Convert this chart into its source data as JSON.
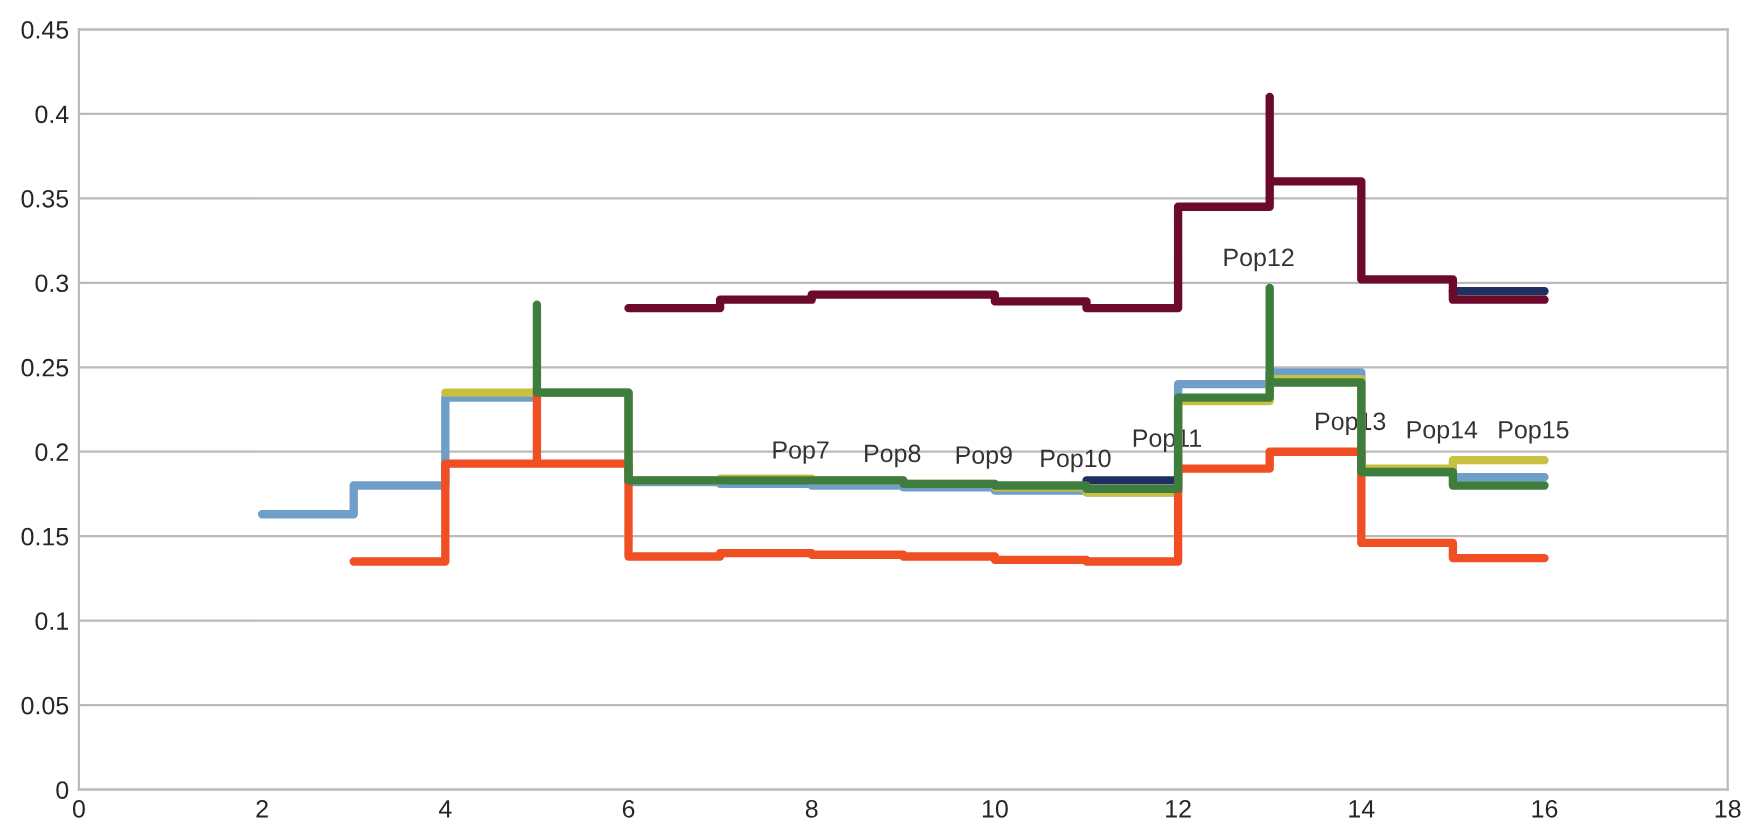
{
  "chart_data": {
    "type": "step",
    "xlim": [
      0,
      18
    ],
    "xticks": [
      0,
      2,
      4,
      6,
      8,
      10,
      12,
      14,
      16,
      18
    ],
    "ylim": [
      0,
      0.45
    ],
    "yticks": [
      0,
      0.05,
      0.1,
      0.15,
      0.2,
      0.25,
      0.3,
      0.35,
      0.4,
      0.45
    ],
    "grid": "y",
    "series": [
      {
        "color": "#6f9fc8",
        "x": [
          2,
          3,
          4,
          5,
          6,
          7,
          8,
          9,
          10,
          11,
          12,
          13,
          14,
          15,
          16
        ],
        "values": [
          0.163,
          0.18,
          0.232,
          0.235,
          0.182,
          0.181,
          0.18,
          0.179,
          0.177,
          0.176,
          0.24,
          0.247,
          0.188,
          0.185,
          0.185
        ]
      },
      {
        "color": "#c8c040",
        "x": [
          4,
          5,
          6,
          7,
          8,
          9,
          10,
          11,
          12,
          13,
          14,
          15,
          16
        ],
        "values": [
          0.235,
          0.235,
          0.183,
          0.184,
          0.183,
          0.181,
          0.179,
          0.176,
          0.23,
          0.243,
          0.19,
          0.195,
          0.195
        ]
      },
      {
        "color": "#f04e23",
        "x": [
          3,
          4,
          5,
          5,
          6,
          7,
          8,
          9,
          10,
          11,
          12,
          13,
          14,
          15,
          16
        ],
        "values": [
          0.135,
          0.193,
          0.235,
          0.193,
          0.138,
          0.14,
          0.139,
          0.138,
          0.136,
          0.135,
          0.19,
          0.2,
          0.146,
          0.137,
          0.137
        ]
      },
      {
        "color": "#1f2f5f",
        "x": [
          11,
          12,
          15,
          16
        ],
        "values": [
          0.183,
          null,
          0.295,
          0.295
        ]
      },
      {
        "color": "#3f7d3f",
        "x": [
          5,
          5,
          6,
          7,
          8,
          9,
          10,
          11,
          12,
          13,
          13,
          14,
          15,
          16
        ],
        "values": [
          0.287,
          0.235,
          0.183,
          0.183,
          0.183,
          0.181,
          0.18,
          0.178,
          0.232,
          0.297,
          0.241,
          0.188,
          0.18,
          0.18
        ]
      },
      {
        "color": "#6b0a2a",
        "x": [
          6,
          7,
          8,
          9,
          10,
          11,
          12,
          13,
          13,
          14,
          15,
          16
        ],
        "values": [
          0.285,
          0.29,
          0.293,
          0.293,
          0.289,
          0.285,
          0.345,
          0.41,
          0.36,
          0.302,
          0.29,
          0.29
        ]
      }
    ],
    "annotations": [
      {
        "text": "Pop7",
        "x": 8,
        "y": 0.183
      },
      {
        "text": "Pop8",
        "x": 9,
        "y": 0.181
      },
      {
        "text": "Pop9",
        "x": 10,
        "y": 0.18
      },
      {
        "text": "Pop10",
        "x": 11,
        "y": 0.178
      },
      {
        "text": "Pop11",
        "x": 12,
        "y": 0.19
      },
      {
        "text": "Pop12",
        "x": 13,
        "y": 0.297
      },
      {
        "text": "Pop13",
        "x": 14,
        "y": 0.2
      },
      {
        "text": "Pop14",
        "x": 15,
        "y": 0.195
      },
      {
        "text": "Pop15",
        "x": 16,
        "y": 0.195
      }
    ]
  }
}
